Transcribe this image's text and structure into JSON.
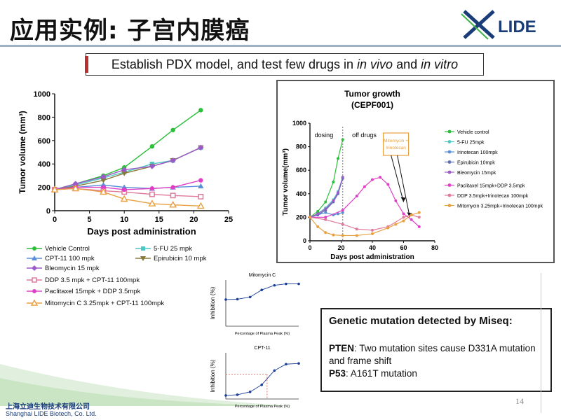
{
  "slide": {
    "title": "应用实例: 子宫内膜癌",
    "banner_pre": "Establish PDX model, and test few drugs in ",
    "banner_em1": "in vivo",
    "banner_mid": " and ",
    "banner_em2": "in vitro",
    "logo_text": "LIDE",
    "footer_cn": "上海立迪生物技术有限公司",
    "footer_en": "Shanghai LIDE Biotech, Co. Ltd.",
    "page_number": "14",
    "colors": {
      "accent_green": "#3fb24a",
      "logo_blue": "#1a3d7a",
      "divider": "#9fb3c6"
    }
  },
  "mutation": {
    "heading": "Genetic mutation detected by Miseq:",
    "pten_label": "PTEN",
    "pten_text": ": Two mutation sites cause D331A mutation and frame shift",
    "p53_label": "P53",
    "p53_text": ": A161T mutation"
  },
  "chart_data": [
    {
      "type": "line",
      "xlabel": "Days post administration",
      "ylabel": "Tumor volume (mm³)",
      "xlim": [
        0,
        25
      ],
      "ylim": [
        0,
        1000
      ],
      "xticks": [
        0,
        5,
        10,
        15,
        20,
        25
      ],
      "yticks": [
        0,
        200,
        400,
        600,
        800,
        1000
      ],
      "grid": false,
      "legend_position": "below",
      "series": [
        {
          "name": "Vehicle Control",
          "color": "#2bbf3a",
          "marker": "circle",
          "x": [
            0,
            3,
            7,
            10,
            14,
            17,
            21
          ],
          "y": [
            180,
            230,
            300,
            370,
            550,
            690,
            860
          ]
        },
        {
          "name": "5-FU 25 mpk",
          "color": "#4fc8c4",
          "marker": "square",
          "x": [
            0,
            3,
            7,
            10,
            14,
            17,
            21
          ],
          "y": [
            180,
            220,
            280,
            330,
            400,
            430,
            540
          ]
        },
        {
          "name": "CPT-11 100 mpk",
          "color": "#5a8fd6",
          "marker": "triangle",
          "x": [
            0,
            3,
            7,
            10,
            14,
            17,
            21
          ],
          "y": [
            180,
            200,
            220,
            200,
            190,
            200,
            210
          ]
        },
        {
          "name": "Epirubicin 10 mpk",
          "color": "#8a7a3a",
          "marker": "triangle-down",
          "x": [
            0,
            3,
            7,
            10,
            14,
            17,
            21
          ],
          "y": [
            180,
            210,
            260,
            320,
            380,
            430,
            540
          ]
        },
        {
          "name": "Bleomycin 15 mpk",
          "color": "#9b59c9",
          "marker": "diamond",
          "x": [
            0,
            3,
            7,
            10,
            14,
            17,
            21
          ],
          "y": [
            180,
            230,
            290,
            350,
            380,
            430,
            540
          ]
        },
        {
          "name": "DDP 3.5 mpk + CPT-11 100mpk",
          "color": "#e07a9a",
          "marker": "square-open",
          "x": [
            0,
            3,
            7,
            10,
            14,
            17,
            21
          ],
          "y": [
            180,
            190,
            170,
            160,
            140,
            130,
            120
          ]
        },
        {
          "name": "Paclitaxel 15mpk + DDP 3.5mpk",
          "color": "#e040c8",
          "marker": "circle",
          "x": [
            0,
            3,
            7,
            10,
            14,
            17,
            21
          ],
          "y": [
            180,
            200,
            200,
            180,
            190,
            200,
            260
          ]
        },
        {
          "name": "Mitomycin C 3.25mpk + CPT-11 100mpk",
          "color": "#e8a040",
          "marker": "triangle-open",
          "x": [
            0,
            3,
            7,
            10,
            14,
            17,
            21
          ],
          "y": [
            180,
            190,
            160,
            100,
            60,
            50,
            40
          ]
        }
      ]
    },
    {
      "type": "line",
      "title": "Tumor growth",
      "subtitle": "(CEPF001)",
      "xlabel": "Days post administration",
      "ylabel": "Tumor volume(mm³)",
      "xlim": [
        0,
        80
      ],
      "ylim": [
        0,
        1000
      ],
      "xticks": [
        0,
        20,
        40,
        60,
        80
      ],
      "yticks": [
        0,
        200,
        400,
        600,
        800,
        1000
      ],
      "annotations": [
        "dosing",
        "off drugs",
        "Mitomycin + Irinotecan"
      ],
      "legend_position": "right",
      "series": [
        {
          "name": "Vehicle control",
          "color": "#2bbf3a",
          "x": [
            0,
            5,
            10,
            15,
            18,
            21
          ],
          "y": [
            200,
            250,
            330,
            500,
            700,
            860
          ]
        },
        {
          "name": "5-FU 25mpk",
          "color": "#4fc8c4",
          "x": [
            0,
            5,
            10,
            15,
            18,
            21
          ],
          "y": [
            200,
            230,
            280,
            350,
            420,
            540
          ]
        },
        {
          "name": "Irinotecan 100mpk",
          "color": "#5a8fd6",
          "x": [
            0,
            5,
            10,
            15,
            18,
            21
          ],
          "y": [
            200,
            220,
            240,
            220,
            230,
            240
          ]
        },
        {
          "name": "Epirubicin 10mpk",
          "color": "#6070b0",
          "x": [
            0,
            5,
            10,
            15,
            18,
            21
          ],
          "y": [
            200,
            220,
            260,
            330,
            400,
            530
          ]
        },
        {
          "name": "Bleomycin 15mpk",
          "color": "#9b59c9",
          "x": [
            0,
            5,
            10,
            15,
            18,
            21
          ],
          "y": [
            200,
            230,
            270,
            340,
            410,
            540
          ]
        },
        {
          "name": "Paclitaxel 15mpk+DDP 3.5mpk",
          "color": "#e040c8",
          "x": [
            0,
            10,
            21,
            30,
            35,
            40,
            45,
            50,
            55,
            60,
            65,
            70
          ],
          "y": [
            200,
            200,
            260,
            380,
            460,
            520,
            540,
            480,
            340,
            230,
            180,
            120
          ]
        },
        {
          "name": "DDP 3.5mpk+Irinotecan 100mpk",
          "color": "#e07a9a",
          "x": [
            0,
            10,
            21,
            30,
            40,
            50,
            60,
            65,
            70
          ],
          "y": [
            200,
            180,
            140,
            100,
            90,
            120,
            200,
            220,
            200
          ]
        },
        {
          "name": "Mitomycin 3.25mpk+Irinotecan 100mpk",
          "color": "#e8a040",
          "x": [
            0,
            5,
            10,
            15,
            21,
            30,
            40,
            50,
            55,
            60,
            65,
            70
          ],
          "y": [
            200,
            120,
            70,
            50,
            45,
            45,
            60,
            110,
            140,
            170,
            220,
            240
          ]
        }
      ]
    },
    {
      "type": "line",
      "title": "Mitomycin C",
      "xlabel": "Percentage of Plasma Peak (%)",
      "ylabel": "Inhibition (%)",
      "x_scale": "log",
      "ylim": [
        -20,
        110
      ],
      "series": [
        {
          "name": "",
          "color": "#1a3d9a",
          "x": [
            0.1,
            0.3,
            1,
            3,
            10,
            30,
            100
          ],
          "y": [
            55,
            56,
            62,
            82,
            95,
            99,
            99
          ]
        }
      ]
    },
    {
      "type": "line",
      "title": "CPT-11",
      "xlabel": "Percentage of Plasma Peak (%)",
      "ylabel": "Inhibition (%)",
      "x_scale": "log",
      "ylim": [
        -20,
        110
      ],
      "series": [
        {
          "name": "",
          "color": "#1a3d9a",
          "x": [
            0.1,
            0.3,
            1,
            3,
            10,
            30,
            100
          ],
          "y": [
            -10,
            -8,
            0,
            20,
            60,
            78,
            80
          ]
        }
      ]
    }
  ]
}
